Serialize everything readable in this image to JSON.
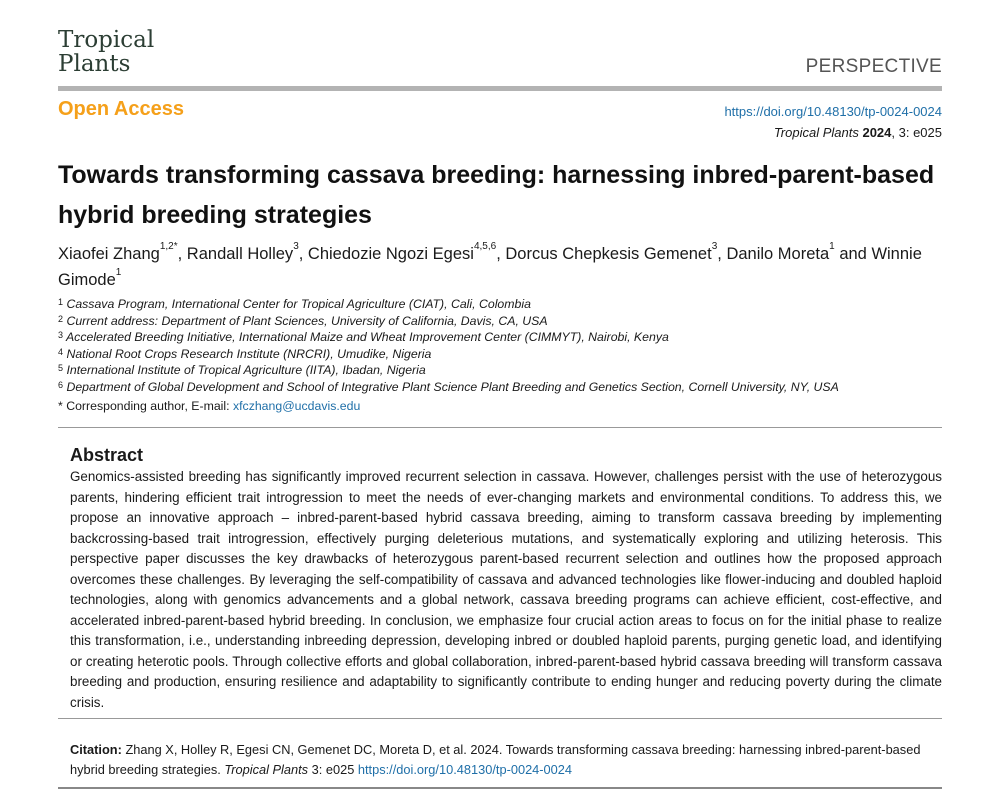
{
  "journal": {
    "logo_line1": "Tropical",
    "logo_line2": "Plants",
    "article_type": "PERSPECTIVE",
    "open_access": "Open Access",
    "doi": "https://doi.org/10.48130/tp-0024-0024",
    "journal_name": "Tropical Plants",
    "year": "2024",
    "volume_article": ", 3: e025"
  },
  "title": "Towards transforming cassava breeding: harnessing inbred-parent-based hybrid breeding strategies",
  "authors": [
    {
      "name": "Xiaofei Zhang",
      "sup": "1,2*"
    },
    {
      "name": "Randall Holley",
      "sup": "3"
    },
    {
      "name": "Chiedozie Ngozi Egesi",
      "sup": "4,5,6"
    },
    {
      "name": "Dorcus Chepkesis Gemenet",
      "sup": "3"
    },
    {
      "name": "Danilo Moreta",
      "sup": "1"
    },
    {
      "name": "Winnie Gimode",
      "sup": "1"
    }
  ],
  "authors_and": "and",
  "affiliations": [
    {
      "num": "1",
      "text": "Cassava Program, International Center for Tropical Agriculture (CIAT), Cali, Colombia"
    },
    {
      "num": "2",
      "text": "Current address: Department of Plant Sciences, University of California, Davis, CA, USA"
    },
    {
      "num": "3",
      "text": "Accelerated Breeding Initiative, International Maize and Wheat Improvement Center (CIMMYT), Nairobi, Kenya"
    },
    {
      "num": "4",
      "text": "National Root Crops Research Institute (NRCRI), Umudike, Nigeria"
    },
    {
      "num": "5",
      "text": "International Institute of Tropical Agriculture (IITA), Ibadan, Nigeria"
    },
    {
      "num": "6",
      "text": "Department of Global Development and School of Integrative Plant Science Plant Breeding and Genetics Section, Cornell University, NY, USA"
    }
  ],
  "corresponding": {
    "label": "* Corresponding author, E-mail: ",
    "email": "xfczhang@ucdavis.edu"
  },
  "abstract": {
    "heading": "Abstract",
    "text": "Genomics-assisted breeding has significantly improved recurrent selection in cassava. However, challenges persist with the use of heterozygous parents, hindering efficient trait introgression to meet the needs of ever-changing markets and environmental conditions. To address this, we propose an innovative approach – inbred-parent-based hybrid cassava breeding, aiming to transform cassava breeding by implementing backcrossing-based trait introgression, effectively purging deleterious mutations, and systematically exploring and utilizing heterosis. This perspective paper discusses the key drawbacks of heterozygous parent-based recurrent selection and outlines how the proposed approach overcomes these challenges. By leveraging the self-compatibility of cassava and advanced technologies like flower-inducing and doubled haploid technologies, along with genomics advancements and a global network, cassava breeding programs can achieve efficient, cost-effective, and accelerated inbred-parent-based hybrid breeding. In conclusion, we emphasize four crucial action areas to focus on for the initial phase to realize this transformation, i.e., understanding inbreeding depression, developing inbred or doubled haploid parents, purging genetic load, and identifying or creating heterotic pools. Through collective efforts and global collaboration, inbred-parent-based hybrid cassava breeding will transform cassava breeding and production, ensuring resilience and adaptability to significantly contribute to ending hunger and reducing poverty during the climate crisis."
  },
  "citation": {
    "label": "Citation:",
    "text": " Zhang X, Holley R, Egesi CN, Gemenet DC, Moreta D, et al. 2024. Towards transforming cassava breeding: harnessing inbred-parent-based hybrid breeding strategies. ",
    "journal": "Tropical Plants",
    "vol": " 3: e025 ",
    "doi": "https://doi.org/10.48130/tp-0024-0024"
  }
}
